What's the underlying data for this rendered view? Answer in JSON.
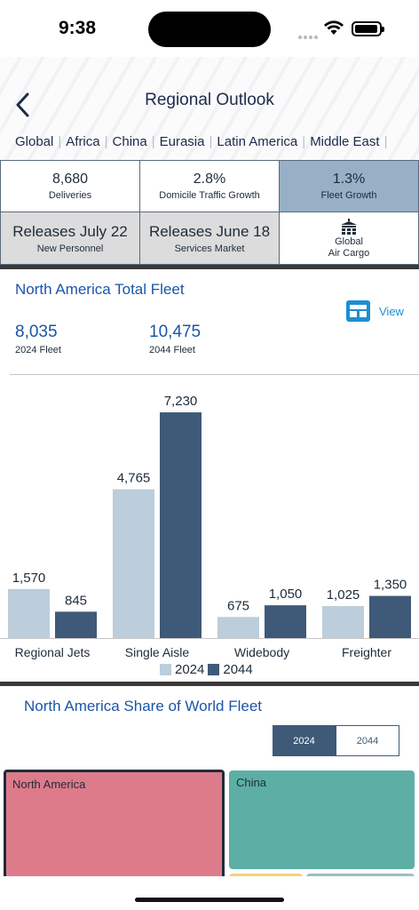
{
  "status_bar": {
    "time": "9:38"
  },
  "header": {
    "title": "Regional Outlook",
    "regions": [
      "Global",
      "Africa",
      "China",
      "Eurasia",
      "Latin America",
      "Middle East"
    ]
  },
  "metrics": {
    "deliveries": {
      "value": "8,680",
      "label": "Deliveries"
    },
    "traffic": {
      "value": "2.8%",
      "label": "Domicile Traffic Growth"
    },
    "fleet_growth": {
      "value": "1.3%",
      "label": "Fleet Growth"
    },
    "new_personnel": {
      "value": "Releases July 22",
      "label": "New Personnel"
    },
    "services": {
      "value": "Releases June 18",
      "label": "Services Market"
    },
    "air_cargo": {
      "line1": "Global",
      "line2": "Air Cargo",
      "icon": "cargo-terminal-icon"
    }
  },
  "fleet": {
    "title": "North America Total Fleet",
    "view_label": "View",
    "stat_2024": {
      "value": "8,035",
      "label": "2024 Fleet"
    },
    "stat_2044": {
      "value": "10,475",
      "label": "2044 Fleet"
    }
  },
  "chart_data": {
    "type": "bar",
    "categories": [
      "Regional Jets",
      "Single Aisle",
      "Widebody",
      "Freighter"
    ],
    "series": [
      {
        "name": "2024",
        "values": [
          1570,
          4765,
          675,
          1025
        ],
        "labels": [
          "1,570",
          "4,765",
          "675",
          "1,025"
        ],
        "color": "#bccddb"
      },
      {
        "name": "2044",
        "values": [
          845,
          7230,
          1050,
          1350
        ],
        "labels": [
          "845",
          "7,230",
          "1,050",
          "1,350"
        ],
        "color": "#3e5a78"
      }
    ],
    "ylim": [
      0,
      7230
    ],
    "grid": false,
    "legend": "bottom"
  },
  "share": {
    "title": "North America Share of World Fleet",
    "toggle": [
      "2024",
      "2044"
    ],
    "selected": "2024",
    "tiles": {
      "north_america": "North America",
      "china": "China"
    }
  },
  "colors": {
    "accent": "#1a56a6",
    "highlight": "#97b0c6",
    "dark_series": "#3e5a78",
    "light_series": "#bccddb"
  }
}
